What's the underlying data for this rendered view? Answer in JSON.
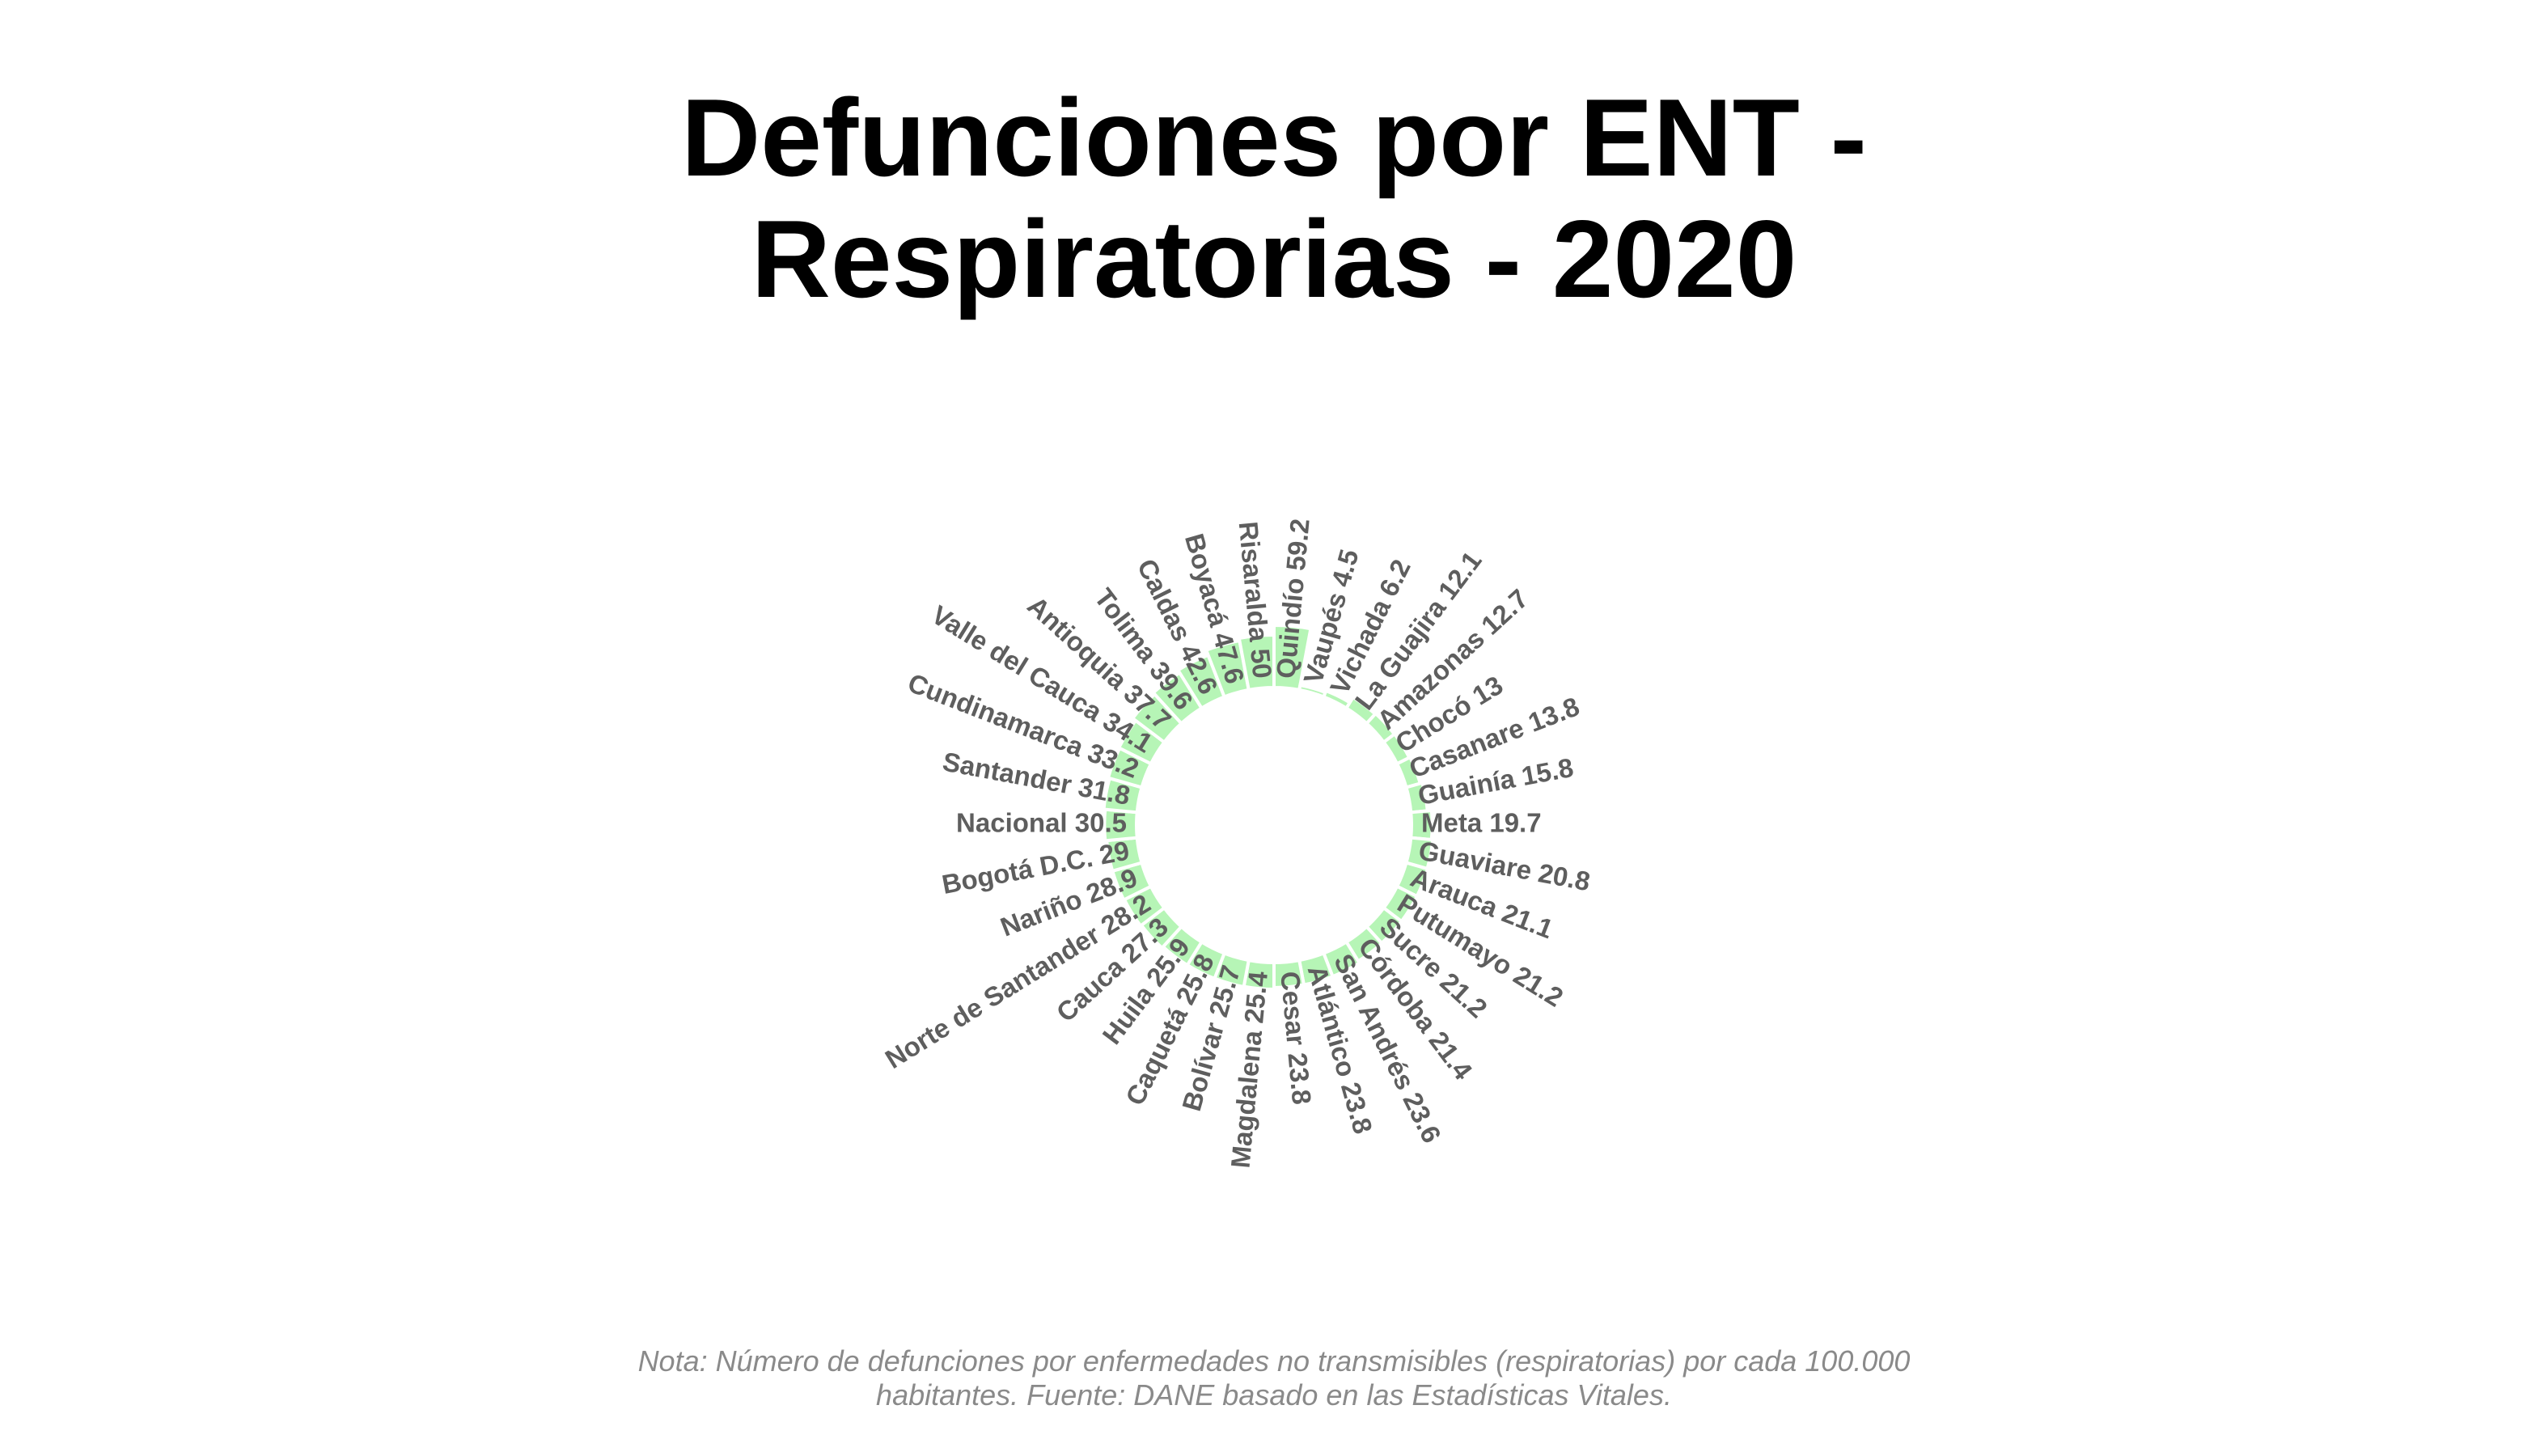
{
  "chart_data": {
    "type": "bar",
    "subtype": "circular-bar",
    "title_lines": [
      "Defunciones por ENT -",
      "Respiratorias - 2020"
    ],
    "note_lines": [
      "Nota: Número de defunciones por enfermedades no transmisibles (respiratorias) por cada 100.000",
      "habitantes. Fuente: DANE basado en las Estadísticas Vitales."
    ],
    "bar_color": "#b6f5b6",
    "label_color": "#5e5e5e",
    "categories": [
      "Quindío",
      "Vaupés",
      "Vichada",
      "La Guajira",
      "Amazonas",
      "Chocó",
      "Casanare",
      "Guainía",
      "Meta",
      "Guaviare",
      "Arauca",
      "Putumayo",
      "Sucre",
      "Córdoba",
      "San Andrés",
      "Atlántico",
      "Cesar",
      "Magdalena",
      "Bolívar",
      "Caquetá",
      "Huila",
      "Cauca",
      "Norte de Santander",
      "Nariño",
      "Bogotá D.C.",
      "Nacional",
      "Santander",
      "Cundinamarca",
      "Valle del Cauca",
      "Antioquia",
      "Tolima",
      "Caldas",
      "Boyacá",
      "Risaralda"
    ],
    "values": [
      59.2,
      4.5,
      6.2,
      12.1,
      12.7,
      13,
      13.8,
      15.8,
      19.7,
      20.8,
      21.1,
      21.2,
      21.2,
      21.4,
      23.6,
      23.8,
      23.8,
      25.4,
      25.7,
      25.8,
      25.9,
      27.3,
      28.2,
      28.9,
      29,
      30.5,
      31.8,
      33.2,
      34.1,
      37.7,
      39.6,
      42.6,
      47.6,
      50
    ],
    "labels": [
      "Quindío 59.2",
      "Vaupés 4.5",
      "Vichada 6.2",
      "La Guajira 12.1",
      "Amazonas 12.7",
      "Chocó 13",
      "Casanare 13.8",
      "Guainía 15.8",
      "Meta 19.7",
      "Guaviare 20.8",
      "Arauca 21.1",
      "Putumayo 21.2",
      "Sucre 21.2",
      "Córdoba 21.4",
      "San Andrés 23.6",
      "Atlántico 23.8",
      "Cesar 23.8",
      "Magdalena 25.4",
      "Bolívar 25.7",
      "Caquetá 25.8",
      "Huila 25.9",
      "Cauca 27.3",
      "Norte de Santander 28.2",
      "Nariño 28.9",
      "Bogotá D.C. 29",
      "Nacional 30.5",
      "Santander 31.8",
      "Cundinamarca 33.2",
      "Valle del Cauca 34.1",
      "Antioquia 37.7",
      "Tolima 39.6",
      "Caldas 42.6",
      "Boyacá 47.6",
      "Risaralda 50"
    ],
    "grid": false,
    "legend": "none"
  }
}
